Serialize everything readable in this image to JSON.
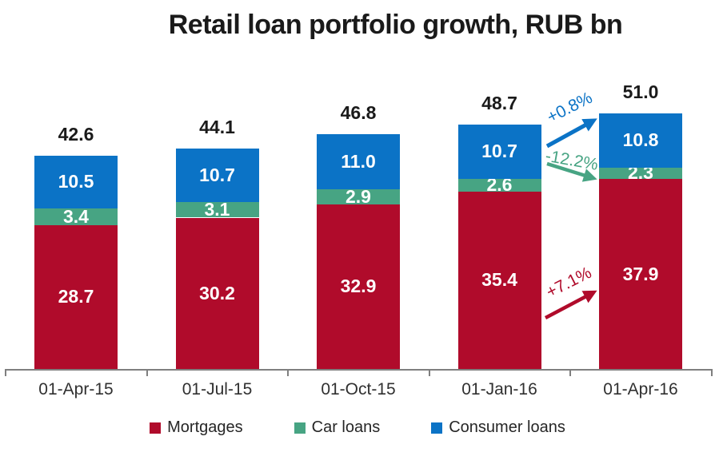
{
  "title": "Retail loan portfolio growth, RUB bn",
  "colors": {
    "mortgages": "#b00b2b",
    "car_loans": "#47a483",
    "consumer_loans": "#0b73c6",
    "axis": "#7f7f7f",
    "title_text": "#1a1a1a",
    "segment_label_text": "#ffffff"
  },
  "chart_data": {
    "type": "bar",
    "stacked": true,
    "title": "Retail loan portfolio growth, RUB bn",
    "unit": "RUB bn",
    "categories": [
      "01-Apr-15",
      "01-Jul-15",
      "01-Oct-15",
      "01-Jan-16",
      "01-Apr-16"
    ],
    "series": [
      {
        "name": "Mortgages",
        "color": "#b00b2b",
        "values": [
          28.7,
          30.2,
          32.9,
          35.4,
          37.9
        ]
      },
      {
        "name": "Car loans",
        "color": "#47a483",
        "values": [
          3.4,
          3.1,
          2.9,
          2.6,
          2.3
        ]
      },
      {
        "name": "Consumer loans",
        "color": "#0b73c6",
        "values": [
          10.5,
          10.7,
          11.0,
          10.7,
          10.8
        ]
      }
    ],
    "totals": [
      "42.6",
      "44.1",
      "46.8",
      "48.7",
      "51.0"
    ],
    "ylim": [
      0,
      51
    ],
    "grid": false,
    "y_axis_visible": false,
    "legend_position": "bottom",
    "annotations": [
      {
        "text": "+0.8%",
        "series": "Consumer loans",
        "color": "#0b73c6"
      },
      {
        "text": "-12.2%",
        "series": "Car loans",
        "color": "#47a483"
      },
      {
        "text": "+7.1%",
        "series": "Mortgages",
        "color": "#b00b2b"
      }
    ]
  }
}
